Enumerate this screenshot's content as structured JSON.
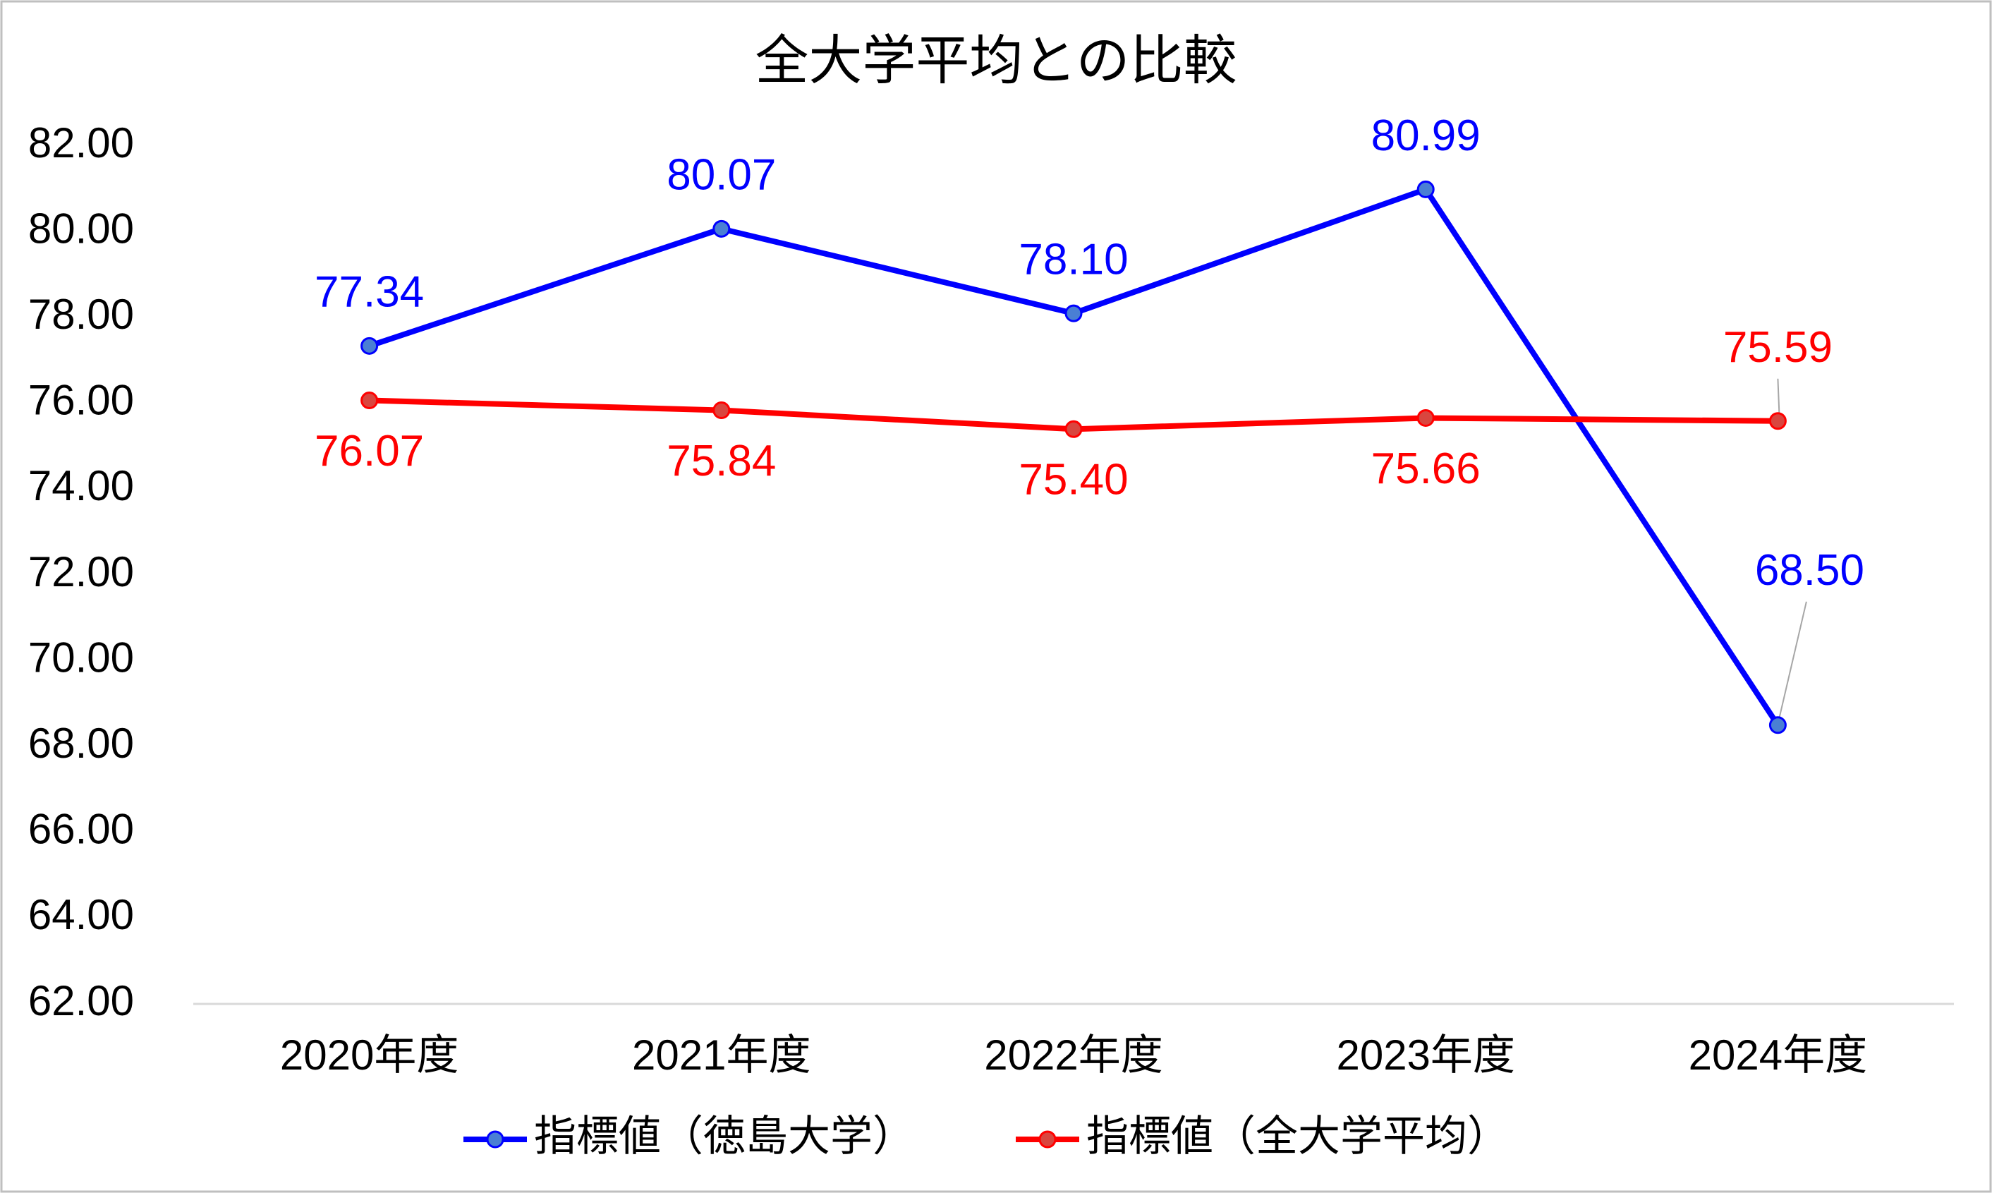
{
  "chart_data": {
    "type": "line",
    "title": "全大学平均との比較",
    "categories": [
      "2020年度",
      "2021年度",
      "2022年度",
      "2023年度",
      "2024年度"
    ],
    "series": [
      {
        "name": "指標値（徳島大学）",
        "color": "#0000ff",
        "marker_color": "#4a7fd4",
        "values": [
          77.34,
          80.07,
          78.1,
          80.99,
          68.5
        ],
        "value_labels": [
          "77.34",
          "80.07",
          "78.10",
          "80.99",
          "68.50"
        ]
      },
      {
        "name": "指標値（全大学平均）",
        "color": "#ff0000",
        "marker_color": "#d9463f",
        "values": [
          76.07,
          75.84,
          75.4,
          75.66,
          75.59
        ],
        "value_labels": [
          "76.07",
          "75.84",
          "75.40",
          "75.66",
          "75.59"
        ]
      }
    ],
    "ylim": [
      62,
      82
    ],
    "yticks": [
      {
        "value": 62,
        "label": "62.00"
      },
      {
        "value": 64,
        "label": "64.00"
      },
      {
        "value": 66,
        "label": "66.00"
      },
      {
        "value": 68,
        "label": "68.00"
      },
      {
        "value": 70,
        "label": "70.00"
      },
      {
        "value": 72,
        "label": "72.00"
      },
      {
        "value": 74,
        "label": "74.00"
      },
      {
        "value": 76,
        "label": "76.00"
      },
      {
        "value": 78,
        "label": "78.00"
      },
      {
        "value": 80,
        "label": "80.00"
      },
      {
        "value": 82,
        "label": "82.00"
      }
    ],
    "grid": false,
    "legend": "bottom"
  }
}
